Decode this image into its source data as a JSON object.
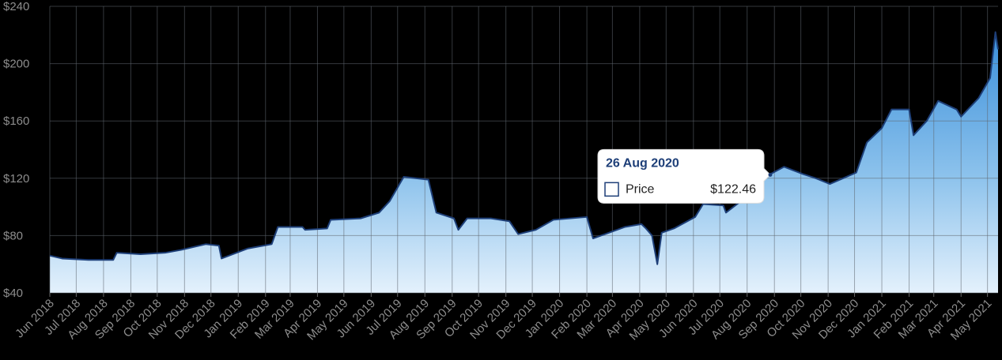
{
  "chart_data": {
    "type": "area",
    "ylim": [
      40,
      240
    ],
    "yticks": [
      {
        "value": 40,
        "label": "$40"
      },
      {
        "value": 80,
        "label": "$80"
      },
      {
        "value": 120,
        "label": "$120"
      },
      {
        "value": 160,
        "label": "$160"
      },
      {
        "value": 200,
        "label": "$200"
      },
      {
        "value": 240,
        "label": "$240"
      }
    ],
    "xlim": [
      "2018-06-01",
      "2021-05-13"
    ],
    "xticks": [
      {
        "value": "2018-06-01",
        "label": "Jun 2018"
      },
      {
        "value": "2018-07-01",
        "label": "Jul 2018"
      },
      {
        "value": "2018-08-01",
        "label": "Aug 2018"
      },
      {
        "value": "2018-09-01",
        "label": "Sep 2018"
      },
      {
        "value": "2018-10-01",
        "label": "Oct 2018"
      },
      {
        "value": "2018-11-01",
        "label": "Nov 2018"
      },
      {
        "value": "2018-12-01",
        "label": "Dec 2018"
      },
      {
        "value": "2019-01-01",
        "label": "Jan 2019"
      },
      {
        "value": "2019-02-01",
        "label": "Feb 2019"
      },
      {
        "value": "2019-03-01",
        "label": "Mar 2019"
      },
      {
        "value": "2019-04-01",
        "label": "Apr 2019"
      },
      {
        "value": "2019-05-01",
        "label": "May 2019"
      },
      {
        "value": "2019-06-01",
        "label": "Jun 2019"
      },
      {
        "value": "2019-07-01",
        "label": "Jul 2019"
      },
      {
        "value": "2019-08-01",
        "label": "Aug 2019"
      },
      {
        "value": "2019-09-01",
        "label": "Sep 2019"
      },
      {
        "value": "2019-10-01",
        "label": "Oct 2019"
      },
      {
        "value": "2019-11-01",
        "label": "Nov 2019"
      },
      {
        "value": "2019-12-01",
        "label": "Dec 2019"
      },
      {
        "value": "2020-01-01",
        "label": "Jan 2020"
      },
      {
        "value": "2020-02-01",
        "label": "Feb 2020"
      },
      {
        "value": "2020-03-01",
        "label": "Mar 2020"
      },
      {
        "value": "2020-04-01",
        "label": "Apr 2020"
      },
      {
        "value": "2020-05-01",
        "label": "May 2020"
      },
      {
        "value": "2020-06-01",
        "label": "Jun 2020"
      },
      {
        "value": "2020-07-01",
        "label": "Jul 2020"
      },
      {
        "value": "2020-08-01",
        "label": "Aug 2020"
      },
      {
        "value": "2020-09-01",
        "label": "Sep 2020"
      },
      {
        "value": "2020-10-01",
        "label": "Oct 2020"
      },
      {
        "value": "2020-11-01",
        "label": "Nov 2020"
      },
      {
        "value": "2020-12-01",
        "label": "Dec 2020"
      },
      {
        "value": "2021-01-01",
        "label": "Jan 2021"
      },
      {
        "value": "2021-02-01",
        "label": "Feb 2021"
      },
      {
        "value": "2021-03-01",
        "label": "Mar 2021"
      },
      {
        "value": "2021-04-01",
        "label": "Apr 2021"
      },
      {
        "value": "2021-05-01",
        "label": "May 2021"
      }
    ],
    "grid": true,
    "series": [
      {
        "name": "Price",
        "color": "#1e3f78",
        "x": [
          "2018-06-01",
          "2018-06-15",
          "2018-07-15",
          "2018-08-12",
          "2018-08-16",
          "2018-09-12",
          "2018-10-10",
          "2018-10-28",
          "2018-11-25",
          "2018-12-10",
          "2018-12-13",
          "2019-01-12",
          "2019-02-08",
          "2019-02-15",
          "2019-03-15",
          "2019-03-18",
          "2019-04-12",
          "2019-04-16",
          "2019-05-20",
          "2019-06-10",
          "2019-06-22",
          "2019-07-08",
          "2019-08-05",
          "2019-08-14",
          "2019-09-03",
          "2019-09-08",
          "2019-09-18",
          "2019-10-15",
          "2019-11-05",
          "2019-11-15",
          "2019-12-05",
          "2019-12-25",
          "2020-02-01",
          "2020-02-08",
          "2020-03-15",
          "2020-04-03",
          "2020-04-08",
          "2020-04-15",
          "2020-04-21",
          "2020-04-26",
          "2020-05-10",
          "2020-06-03",
          "2020-06-12",
          "2020-07-05",
          "2020-07-08",
          "2020-07-27",
          "2020-08-10",
          "2020-08-26",
          "2020-09-12",
          "2020-10-03",
          "2020-10-18",
          "2020-11-03",
          "2020-12-03",
          "2020-12-15",
          "2021-01-01",
          "2021-01-12",
          "2021-02-01",
          "2021-02-06",
          "2021-02-21",
          "2021-03-06",
          "2021-03-27",
          "2021-04-01",
          "2021-04-21",
          "2021-05-04",
          "2021-05-10",
          "2021-05-13"
        ],
        "values": [
          66,
          64,
          63,
          63,
          68,
          67,
          68,
          70,
          74,
          73,
          64,
          71,
          74,
          86,
          86,
          84,
          85,
          91,
          92,
          96,
          104,
          121,
          119,
          96,
          92,
          84,
          92,
          92,
          90,
          81,
          84,
          91,
          93,
          78,
          86,
          88,
          85,
          80,
          60,
          82,
          85,
          93,
          102,
          101,
          96,
          105,
          112,
          122.46,
          128,
          123,
          120,
          116,
          124,
          145,
          155,
          168,
          168,
          150,
          160,
          174,
          168,
          163,
          176,
          190,
          222,
          210
        ]
      }
    ],
    "tooltip": {
      "title": "26 Aug 2020",
      "value": 122.46,
      "value_label": "$122.46"
    }
  }
}
